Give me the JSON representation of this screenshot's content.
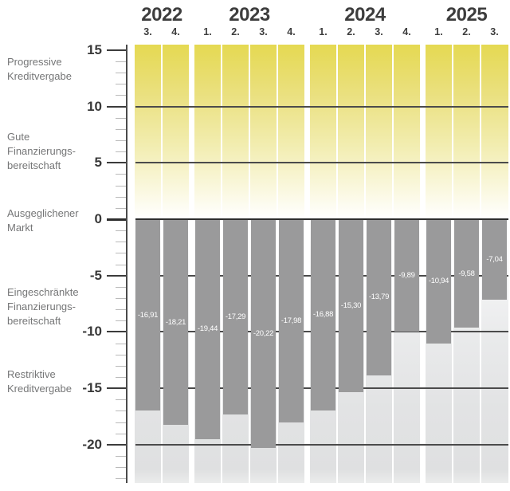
{
  "chart_data": {
    "type": "bar",
    "title": "",
    "axis": {
      "ymin": -23.5,
      "ymax": 15.5,
      "major_ticks": [
        15,
        10,
        5,
        0,
        -5,
        -10,
        -15,
        -20
      ],
      "tick_labels": [
        "15",
        "10",
        "5",
        "0",
        "-5",
        "-10",
        "-15",
        "-20"
      ],
      "minor_tick_step": 1,
      "gridlines": [
        10,
        5,
        0,
        -5,
        -10,
        -15,
        -20
      ],
      "grid": true,
      "legend": "none"
    },
    "groups": [
      {
        "year": "2022",
        "bars": [
          {
            "quarter": "3.",
            "value": -16.91,
            "label": "-16,91"
          },
          {
            "quarter": "4.",
            "value": -18.21,
            "label": "-18,21"
          }
        ]
      },
      {
        "year": "2023",
        "bars": [
          {
            "quarter": "1.",
            "value": -19.44,
            "label": "-19,44"
          },
          {
            "quarter": "2.",
            "value": -17.29,
            "label": "-17,29"
          },
          {
            "quarter": "3.",
            "value": -20.22,
            "label": "-20,22"
          },
          {
            "quarter": "4.",
            "value": -17.98,
            "label": "-17,98"
          }
        ]
      },
      {
        "year": "2024",
        "bars": [
          {
            "quarter": "1.",
            "value": -16.88,
            "label": "-16,88"
          },
          {
            "quarter": "2.",
            "value": -15.3,
            "label": "-15,30"
          },
          {
            "quarter": "3.",
            "value": -13.79,
            "label": "-13,79"
          },
          {
            "quarter": "4.",
            "value": -9.89,
            "label": "-9,89"
          }
        ]
      },
      {
        "year": "2025",
        "bars": [
          {
            "quarter": "1.",
            "value": -10.94,
            "label": "-10,94"
          },
          {
            "quarter": "2.",
            "value": -9.58,
            "label": "-9,58"
          },
          {
            "quarter": "3.",
            "value": -7.04,
            "label": "-7,04"
          }
        ]
      }
    ],
    "zones": [
      {
        "lines": [
          "Progressive",
          "Kreditvergabe"
        ],
        "y": 13.3
      },
      {
        "lines": [
          "Gute",
          "Finanzierungs-",
          "bereitschaft"
        ],
        "y": 6.0
      },
      {
        "lines": [
          "Ausgeglichener",
          "Markt"
        ],
        "y": -0.15
      },
      {
        "lines": [
          "Eingeschränkte",
          "Finanzierungs-",
          "bereitschaft"
        ],
        "y": -7.8
      },
      {
        "lines": [
          "Restriktive",
          "Kreditvergabe"
        ],
        "y": -14.4
      }
    ],
    "colors": {
      "bar": "#9a9a9b",
      "value_text": "#ffffff",
      "positive_band_top": "#e5d952",
      "negative_band_bottom": "#dfe0e1",
      "grid_line": "#4b4b4b",
      "zero_line": "#2d2d2d",
      "axis_text": "#383838",
      "header_text": "#3d3d3d",
      "zone_text": "#757677"
    }
  }
}
